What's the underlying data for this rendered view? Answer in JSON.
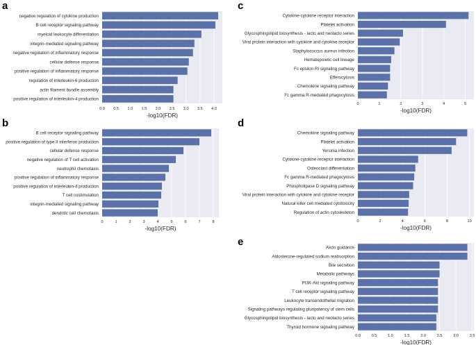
{
  "figure": {
    "bar_color": "#5a72a8",
    "plot_background": "#eaeaf2",
    "grid_color": "#ffffff"
  },
  "chart_data": [
    {
      "type": "bar",
      "orientation": "horizontal",
      "panel": "a",
      "xlabel": "-log10(FDR)",
      "xlim": [
        0,
        4.3
      ],
      "xticks": [
        "0.0",
        "0.5",
        "1.0",
        "1.5",
        "2.0",
        "2.5",
        "3.0",
        "3.5",
        "4.0"
      ],
      "categories": [
        "negative regulation of cytokine production",
        "B cell receptor signaling pathway",
        "myeloid leukocyte differentiation",
        "integrin-mediated signaling pathway",
        "negative regulation of inflammatory response",
        "cellular defense response",
        "positive regulation of inflammatory response",
        "regulation of interleukin-6 production",
        "actin filament bundle assembly",
        "positive regulation of interleukin-4 production"
      ],
      "values": [
        4.15,
        4.05,
        3.55,
        3.3,
        3.25,
        3.1,
        3.05,
        2.7,
        2.55,
        2.55
      ]
    },
    {
      "type": "bar",
      "orientation": "horizontal",
      "panel": "b",
      "xlabel": "-log10(FDR)",
      "xlim": [
        0,
        8.4
      ],
      "xticks": [
        "0",
        "1",
        "2",
        "3",
        "4",
        "5",
        "6",
        "7",
        "8"
      ],
      "categories": [
        "B cell receptor signaling pathway",
        "positive regulation of type II interferon production",
        "cellular defense response",
        "negative regulation of T cell activation",
        "neutrophil chemotaxis",
        "positive regulation of inflammatory response",
        "positive regulation of interleukin-4 production",
        "T cell costimulation",
        "integrin-mediated signaling pathway",
        "dendritic cell chemotaxis"
      ],
      "values": [
        7.85,
        7.0,
        5.85,
        5.3,
        4.8,
        4.55,
        4.3,
        4.25,
        4.05,
        4.0
      ]
    },
    {
      "type": "bar",
      "orientation": "horizontal",
      "panel": "c",
      "xlabel": "-log10(FDR)",
      "xlim": [
        0,
        5.4
      ],
      "xticks": [
        "0",
        "1",
        "2",
        "3",
        "4",
        "5"
      ],
      "categories": [
        "Cytokine-cytokine receptor interaction",
        "Platelet activation",
        "Glycosphingolipid biosynthesis - lacto and neolacto series",
        "Viral protein interaction with cytokine and cytokine receptor",
        "Staphylococcus aureus infection",
        "Hematopoietic cell lineage",
        "Fc epsilon RI signaling pathway",
        "Efferocytosis",
        "Chemokine signaling pathway",
        "Fc gamma R-mediated phagocytosis"
      ],
      "values": [
        5.15,
        4.1,
        2.1,
        1.95,
        1.7,
        1.55,
        1.5,
        1.5,
        1.4,
        1.35
      ]
    },
    {
      "type": "bar",
      "orientation": "horizontal",
      "panel": "d",
      "xlabel": "-log10(FDR)",
      "xlim": [
        0,
        10.4
      ],
      "xticks": [
        "0",
        "2",
        "4",
        "6",
        "8",
        "10"
      ],
      "categories": [
        "Chemokine signaling pathway",
        "Platelet activation",
        "Yersinia infection",
        "Cytokine-cytokine receptor interaction",
        "Osteoclast differentiation",
        "Fc gamma R-mediated phagocytosis",
        "Phospholipase D signaling pathway",
        "Viral protein interaction with cytokine and cytokine receptor",
        "Natural killer cell mediated cytotoxicity",
        "Regulation of actin cytoskeleton"
      ],
      "values": [
        9.8,
        8.8,
        8.4,
        5.4,
        5.15,
        5.05,
        4.95,
        4.6,
        4.55,
        4.5
      ]
    },
    {
      "type": "bar",
      "orientation": "horizontal",
      "panel": "e",
      "xlabel": "-log10(FDR)",
      "xlim": [
        0,
        3.55
      ],
      "xticks": [
        "0.0",
        "0.5",
        "1.0",
        "1.5",
        "2.0",
        "2.5",
        "3.0",
        "3.5"
      ],
      "categories": [
        "Axon guidance",
        "Aldosterone-regulated sodium reabsorption",
        "Bile secretion",
        "Metabolic pathways",
        "PI3K-Akt signaling pathway",
        "T cell receptor signaling pathway",
        "Leukocyte transendothelial migration",
        "Signaling pathways regulating pluripotency of stem cells",
        "Glycosphingolipid biosynthesis - lacto and neolacto series",
        "Thyroid hormone signaling pathway"
      ],
      "values": [
        3.35,
        3.35,
        2.5,
        2.5,
        2.45,
        2.45,
        2.45,
        2.45,
        2.4,
        2.4
      ]
    }
  ]
}
